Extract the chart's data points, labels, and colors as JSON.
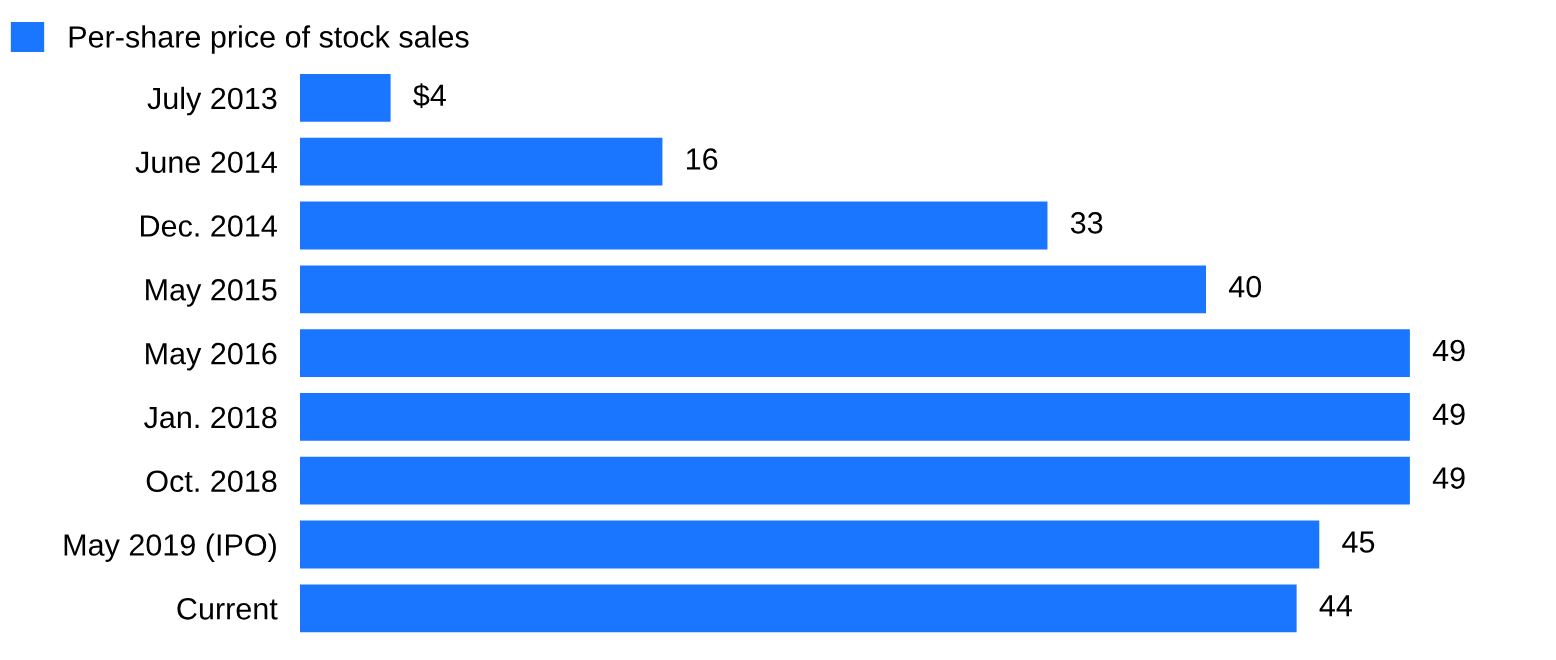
{
  "chart_data": {
    "type": "bar",
    "orientation": "horizontal",
    "categories": [
      "July 2013",
      "June 2014",
      "Dec. 2014",
      "May 2015",
      "May 2016",
      "Jan. 2018",
      "Oct. 2018",
      "May 2019 (IPO)",
      "Current"
    ],
    "series": [
      {
        "name": "Per-share price of stock sales",
        "color": "#1a75ff",
        "values": [
          4,
          16,
          33,
          40,
          49,
          49,
          49,
          45,
          44
        ],
        "value_labels": [
          "$4",
          "16",
          "33",
          "40",
          "49",
          "49",
          "49",
          "45",
          "44"
        ]
      }
    ],
    "legend": "top left",
    "grid": false
  }
}
